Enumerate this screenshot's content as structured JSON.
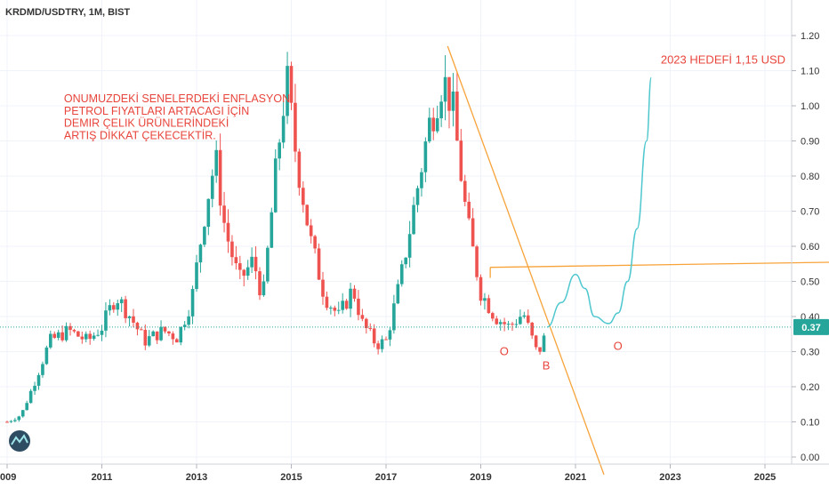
{
  "chart_data": {
    "type": "candlestick",
    "symbol_label": "KRDMD/USDTRY, 1M, BIST",
    "yticks": [
      "0.00",
      "0.10",
      "0.20",
      "0.30",
      "0.40",
      "0.50",
      "0.60",
      "0.70",
      "0.80",
      "0.90",
      "1.00",
      "1.10",
      "1.20"
    ],
    "ylim": [
      0,
      1.25
    ],
    "xticks": [
      {
        "year": 2009,
        "label": "009"
      },
      {
        "year": 2011,
        "label": "2011"
      },
      {
        "year": 2013,
        "label": "2013"
      },
      {
        "year": 2015,
        "label": "2015"
      },
      {
        "year": 2017,
        "label": "2017"
      },
      {
        "year": 2019,
        "label": "2019"
      },
      {
        "year": 2021,
        "label": "2021"
      },
      {
        "year": 2023,
        "label": "2023"
      },
      {
        "year": 2025,
        "label": "2025"
      }
    ],
    "xlim": [
      2009,
      2026.6
    ],
    "current_price_label": "0.37",
    "current_price": 0.37,
    "colors": {
      "up": "#26a69a",
      "down": "#ef5350",
      "trend": "#f7a33a",
      "projection": "#4fc7cf",
      "annotation": "#e8453c",
      "price_badge": "#26a69a"
    },
    "price_path": [
      [
        2009.0,
        0.1
      ],
      [
        2009.3,
        0.12
      ],
      [
        2009.6,
        0.22
      ],
      [
        2009.9,
        0.33
      ],
      [
        2010.3,
        0.36
      ],
      [
        2010.7,
        0.33
      ],
      [
        2011.0,
        0.37
      ],
      [
        2011.3,
        0.46
      ],
      [
        2011.6,
        0.4
      ],
      [
        2011.9,
        0.33
      ],
      [
        2012.3,
        0.36
      ],
      [
        2012.6,
        0.34
      ],
      [
        2012.9,
        0.45
      ],
      [
        2013.2,
        0.72
      ],
      [
        2013.4,
        0.85
      ],
      [
        2013.6,
        0.65
      ],
      [
        2013.9,
        0.5
      ],
      [
        2014.2,
        0.56
      ],
      [
        2014.4,
        0.45
      ],
      [
        2014.7,
        0.85
      ],
      [
        2014.9,
        1.08
      ],
      [
        2015.1,
        0.86
      ],
      [
        2015.4,
        0.62
      ],
      [
        2015.7,
        0.46
      ],
      [
        2016.0,
        0.4
      ],
      [
        2016.3,
        0.48
      ],
      [
        2016.5,
        0.38
      ],
      [
        2016.8,
        0.32
      ],
      [
        2017.0,
        0.33
      ],
      [
        2017.3,
        0.5
      ],
      [
        2017.6,
        0.72
      ],
      [
        2017.9,
        0.94
      ],
      [
        2018.2,
        1.08
      ],
      [
        2018.4,
        1.0
      ],
      [
        2018.7,
        0.68
      ],
      [
        2019.0,
        0.47
      ],
      [
        2019.3,
        0.4
      ],
      [
        2019.6,
        0.37
      ],
      [
        2019.9,
        0.41
      ],
      [
        2020.2,
        0.29
      ],
      [
        2020.4,
        0.36
      ]
    ],
    "projection_path": [
      [
        2020.4,
        0.37
      ],
      [
        2020.7,
        0.44
      ],
      [
        2021.0,
        0.52
      ],
      [
        2021.2,
        0.48
      ],
      [
        2021.4,
        0.4
      ],
      [
        2021.7,
        0.38
      ],
      [
        2021.9,
        0.41
      ],
      [
        2022.1,
        0.5
      ],
      [
        2022.3,
        0.65
      ],
      [
        2022.5,
        0.9
      ],
      [
        2022.6,
        1.08
      ]
    ],
    "trendlines": [
      {
        "points": [
          [
            2018.3,
            1.17
          ],
          [
            2021.6,
            -0.05
          ]
        ]
      },
      {
        "points": [
          [
            2019.2,
            0.54
          ],
          [
            2026.6,
            0.555
          ]
        ]
      }
    ],
    "annotations": [
      {
        "text": "ONUMUZDEKİ SENELERDEKİ ENFLASYON",
        "x": 2010.2,
        "y": 1.01
      },
      {
        "text": "PETROL FIYATLARI ARTACAGI İÇİN",
        "x": 2010.2,
        "y": 0.975
      },
      {
        "text": "DEMIR ÇELIK ÜRÜNLERİNDEKİ",
        "x": 2010.2,
        "y": 0.94
      },
      {
        "text": "ARTIŞ DİKKAT ÇEKECEKTİR.",
        "x": 2010.2,
        "y": 0.905
      }
    ],
    "target_label": {
      "text": "2023 HEDEFİ 1,15 USD",
      "x": 2022.8,
      "y": 1.12
    },
    "point_labels": [
      {
        "text": "O",
        "x": 2019.4,
        "y": 0.29
      },
      {
        "text": "B",
        "x": 2020.3,
        "y": 0.25
      },
      {
        "text": "O",
        "x": 2021.8,
        "y": 0.305
      }
    ]
  }
}
